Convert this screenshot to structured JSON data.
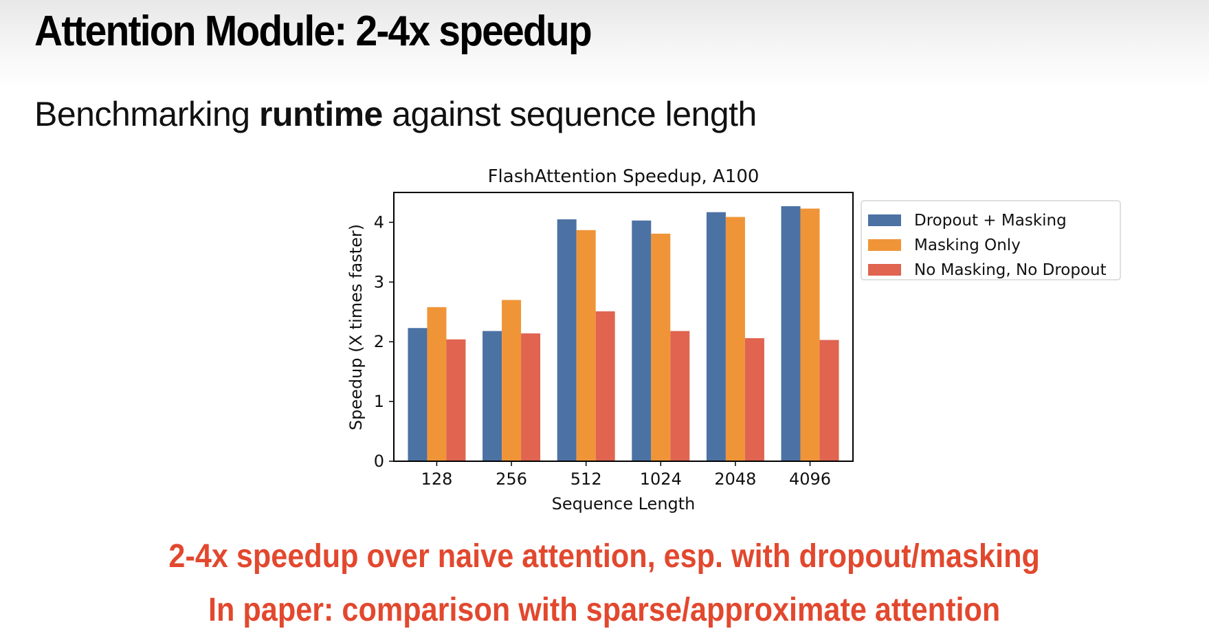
{
  "slide": {
    "title": "Attention Module: 2-4x speedup",
    "subtitle": {
      "before": "Benchmarking ",
      "bold": "runtime",
      "after": " against sequence length"
    },
    "notes": [
      "2-4x speedup over naive attention, esp. with dropout/masking",
      "In paper: comparison with sparse/approximate attention"
    ],
    "note_color": "#e2482e"
  },
  "chart_data": {
    "type": "bar",
    "title": "FlashAttention Speedup, A100",
    "xlabel": "Sequence Length",
    "ylabel": "Speedup (X times faster)",
    "categories": [
      "128",
      "256",
      "512",
      "1024",
      "2048",
      "4096"
    ],
    "ylim": [
      0,
      4.5
    ],
    "yticks": [
      0,
      1,
      2,
      3,
      4
    ],
    "grid": false,
    "legend_position": "outside-right-top",
    "series": [
      {
        "name": "Dropout + Masking",
        "color": "#4c72a4",
        "values": [
          2.23,
          2.18,
          4.05,
          4.03,
          4.17,
          4.27
        ]
      },
      {
        "name": "Masking Only",
        "color": "#ef9538",
        "values": [
          2.58,
          2.7,
          3.87,
          3.81,
          4.09,
          4.23
        ]
      },
      {
        "name": "No Masking, No Dropout",
        "color": "#e06450",
        "values": [
          2.04,
          2.14,
          2.51,
          2.18,
          2.06,
          2.03
        ]
      }
    ]
  }
}
